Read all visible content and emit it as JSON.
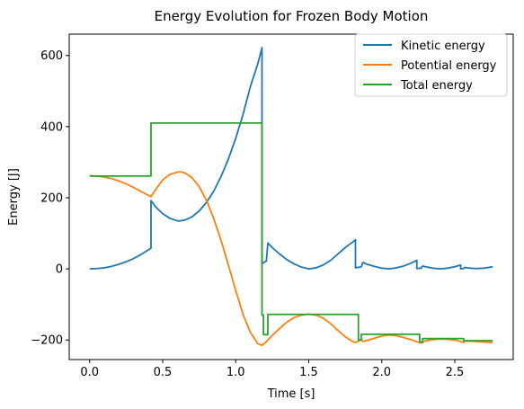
{
  "chart_data": {
    "type": "line",
    "title": "Energy Evolution for Frozen Body Motion",
    "xlabel": "Time [s]",
    "ylabel": "Energy [J]",
    "xlim": [
      -0.14,
      2.9
    ],
    "ylim": [
      -255,
      660
    ],
    "xticks": [
      0.0,
      0.5,
      1.0,
      1.5,
      2.0,
      2.5
    ],
    "xtick_labels": [
      "0.0",
      "0.5",
      "1.0",
      "1.5",
      "2.0",
      "2.5"
    ],
    "yticks": [
      -200,
      0,
      200,
      400,
      600
    ],
    "ytick_labels": [
      "−200",
      "0",
      "200",
      "400",
      "600"
    ],
    "grid": false,
    "legend_position": "top-right",
    "series": [
      {
        "name": "Kinetic energy",
        "color": "#1f77b4",
        "x": [
          0.0,
          0.05,
          0.1,
          0.15,
          0.2,
          0.25,
          0.3,
          0.35,
          0.42,
          0.42,
          0.45,
          0.5,
          0.55,
          0.6,
          0.62,
          0.65,
          0.7,
          0.75,
          0.8,
          0.85,
          0.9,
          0.95,
          1.0,
          1.05,
          1.1,
          1.15,
          1.18,
          1.18,
          1.21,
          1.22,
          1.25,
          1.3,
          1.35,
          1.4,
          1.45,
          1.5,
          1.55,
          1.6,
          1.65,
          1.7,
          1.75,
          1.8,
          1.82,
          1.82,
          1.85,
          1.86,
          1.87,
          1.9,
          1.95,
          2.0,
          2.05,
          2.1,
          2.15,
          2.2,
          2.24,
          2.24,
          2.27,
          2.28,
          2.3,
          2.35,
          2.4,
          2.45,
          2.5,
          2.54,
          2.54,
          2.56,
          2.57,
          2.6,
          2.65,
          2.7,
          2.76
        ],
        "y": [
          0,
          1,
          3,
          7,
          13,
          20,
          29,
          40,
          58,
          192,
          175,
          155,
          142,
          135,
          135,
          137,
          146,
          163,
          187,
          219,
          260,
          309,
          367,
          434,
          512,
          575,
          622,
          15,
          22,
          73,
          60,
          42,
          26,
          14,
          5,
          0,
          3,
          11,
          24,
          42,
          60,
          75,
          82,
          3,
          5,
          6,
          18,
          13,
          7,
          2,
          0,
          3,
          8,
          16,
          24,
          1,
          2,
          8,
          6,
          2,
          0,
          2,
          6,
          11,
          0,
          1,
          4,
          2,
          1,
          2,
          6
        ]
      },
      {
        "name": "Potential energy",
        "color": "#ff7f0e",
        "x": [
          0.0,
          0.05,
          0.1,
          0.15,
          0.2,
          0.25,
          0.3,
          0.35,
          0.42,
          0.45,
          0.5,
          0.55,
          0.6,
          0.62,
          0.65,
          0.7,
          0.75,
          0.8,
          0.85,
          0.9,
          0.95,
          1.0,
          1.05,
          1.1,
          1.15,
          1.18,
          1.21,
          1.22,
          1.25,
          1.3,
          1.35,
          1.4,
          1.45,
          1.5,
          1.55,
          1.6,
          1.65,
          1.7,
          1.75,
          1.8,
          1.82,
          1.85,
          1.86,
          1.87,
          1.9,
          1.95,
          2.0,
          2.05,
          2.1,
          2.15,
          2.2,
          2.24,
          2.27,
          2.28,
          2.3,
          2.35,
          2.4,
          2.45,
          2.5,
          2.54,
          2.56,
          2.57,
          2.6,
          2.65,
          2.7,
          2.76
        ],
        "y": [
          262,
          261,
          258,
          254,
          247,
          239,
          229,
          218,
          203,
          222,
          250,
          266,
          272,
          273,
          270,
          257,
          231,
          193,
          141,
          80,
          10,
          -60,
          -128,
          -178,
          -210,
          -215,
          -205,
          -200,
          -187,
          -168,
          -150,
          -137,
          -130,
          -127,
          -130,
          -139,
          -154,
          -173,
          -191,
          -204,
          -207,
          -201,
          -197,
          -204,
          -201,
          -195,
          -189,
          -186,
          -188,
          -193,
          -199,
          -205,
          -208,
          -207,
          -202,
          -199,
          -197,
          -198,
          -200,
          -204,
          -207,
          -203,
          -203,
          -204,
          -206,
          -207
        ]
      },
      {
        "name": "Total energy",
        "color": "#2ca02c",
        "x": [
          0.0,
          0.42,
          0.42,
          0.43,
          0.43,
          1.18,
          1.18,
          1.19,
          1.19,
          1.22,
          1.22,
          1.82,
          1.82,
          1.84,
          1.84,
          1.86,
          1.86,
          2.24,
          2.24,
          2.26,
          2.26,
          2.28,
          2.28,
          2.54,
          2.54,
          2.56,
          2.56,
          2.76
        ],
        "y": [
          261,
          261,
          410,
          410,
          410,
          410,
          -130,
          -130,
          -185,
          -185,
          -128,
          -128,
          -128,
          -128,
          -200,
          -200,
          -184,
          -184,
          -184,
          -184,
          -206,
          -206,
          -196,
          -196,
          -196,
          -196,
          -202,
          -202
        ]
      }
    ]
  }
}
